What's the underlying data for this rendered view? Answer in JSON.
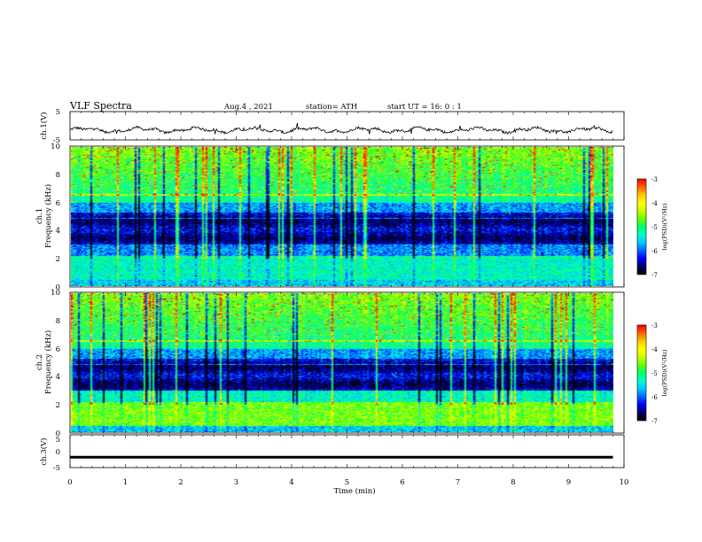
{
  "header": {
    "title": "VLF  Spectra",
    "date": "Aug.4  , 2021",
    "station": "station= ATH",
    "start_ut": "start  UT  =    16: 0   : 1"
  },
  "chart_data": [
    {
      "type": "line",
      "panel": "ch1-waveform",
      "ylabel": "ch.1(V)",
      "xlim": [
        0,
        10
      ],
      "ylim": [
        -5,
        5
      ],
      "y_ticks": [
        "5",
        "-5"
      ],
      "data_extent_min": 9.8,
      "approx_level_V": -1.5,
      "approx_range_V": [
        -3,
        0
      ]
    },
    {
      "type": "heatmap",
      "panel": "ch1-spectrogram",
      "ylabel": "ch.1\nFrequency  (kHz)",
      "xlim": [
        0,
        10
      ],
      "ylim": [
        0,
        10
      ],
      "y_ticks": [
        "0",
        "2",
        "4",
        "6",
        "8",
        "10"
      ],
      "data_extent_min": 9.8,
      "colorbar": {
        "label": "log(PSD)(V²/Hz)",
        "range": [
          -7,
          -3
        ],
        "ticks": [
          "-3",
          "-4",
          "-5",
          "-6",
          "-7"
        ]
      }
    },
    {
      "type": "heatmap",
      "panel": "ch2-spectrogram",
      "ylabel": "ch.2\nFrequency  (kHz)",
      "xlim": [
        0,
        10
      ],
      "ylim": [
        0,
        10
      ],
      "y_ticks": [
        "0",
        "2",
        "4",
        "6",
        "8",
        "10"
      ],
      "data_extent_min": 9.8,
      "colorbar": {
        "label": "log(PSD)(V²/Hz)",
        "range": [
          -7,
          -3
        ],
        "ticks": [
          "-3",
          "-4",
          "-5",
          "-6",
          "-7"
        ]
      }
    },
    {
      "type": "line",
      "panel": "ch3-waveform",
      "ylabel": "ch.3(V)",
      "xlim": [
        0,
        10
      ],
      "ylim": [
        -5,
        5
      ],
      "y_ticks": [
        "5",
        "0",
        "-5"
      ],
      "data_extent_min": 9.8,
      "approx_level_V": -1.8,
      "xlabel": "Time  (min)",
      "x_ticks": [
        "0",
        "1",
        "2",
        "3",
        "4",
        "5",
        "6",
        "7",
        "8",
        "9",
        "10"
      ]
    }
  ],
  "colors": {
    "colormap": [
      "#000000",
      "#000066",
      "#0000ff",
      "#0066ff",
      "#00ccff",
      "#00ffcc",
      "#00ff66",
      "#66ff00",
      "#ccff00",
      "#ffff00",
      "#ffcc00",
      "#ff6600",
      "#ff0000",
      "#ffffff"
    ],
    "trace": "#000000"
  }
}
